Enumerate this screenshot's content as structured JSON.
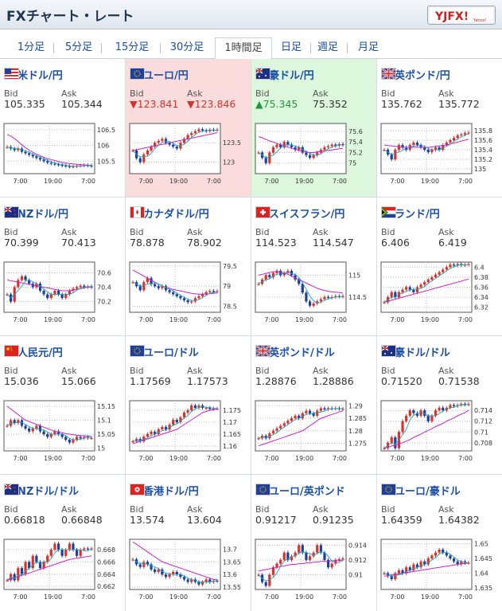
{
  "header": {
    "title": "FXチャート・レート",
    "logo_text": "YJFX!",
    "logo_sub": "Yahoo!"
  },
  "tabs": [
    {
      "label": "1分足",
      "active": false
    },
    {
      "label": "5分足",
      "active": false
    },
    {
      "label": "15分足",
      "active": false
    },
    {
      "label": "30分足",
      "active": false
    },
    {
      "label": "1時間足",
      "active": true
    },
    {
      "label": "日足",
      "active": false
    },
    {
      "label": "週足",
      "active": false
    },
    {
      "label": "月足",
      "active": false
    }
  ],
  "labels": {
    "bid": "Bid",
    "ask": "Ask"
  },
  "colors": {
    "link": "#1b4fa8",
    "down": "#d9322b",
    "up": "#23963a",
    "down_bg": "#fbdcdc",
    "up_bg": "#ddf7dd",
    "ma_line": "#cc22cc"
  },
  "pairs": [
    {
      "name": "米ドル/円",
      "flag": "us",
      "bid": "105.335",
      "ask": "105.344",
      "state": "normal",
      "yticks": [
        "106.5",
        "106",
        "105.5"
      ],
      "xticks": [
        "7:00",
        "19:00",
        "7:00"
      ],
      "series": [
        105.95,
        105.9,
        105.85,
        105.9,
        105.8,
        105.75,
        105.7,
        105.65,
        105.6,
        105.55,
        105.5,
        105.45,
        105.42,
        105.4,
        105.38,
        105.36,
        105.34,
        105.32,
        105.33,
        105.35,
        105.36,
        105.37,
        105.36,
        105.34
      ],
      "ma": [
        106.35,
        106.3,
        106.22,
        106.12,
        106.02,
        105.93,
        105.85,
        105.78,
        105.72,
        105.67,
        105.62,
        105.58,
        105.55,
        105.52,
        105.49,
        105.46,
        105.44,
        105.42,
        105.41,
        105.4,
        105.39,
        105.38,
        105.37,
        105.36
      ],
      "ylim": [
        105.1,
        106.7
      ]
    },
    {
      "name": "ユーロ/円",
      "flag": "eu",
      "bid": "▼123.841",
      "ask": "▼123.846",
      "state": "down",
      "yticks": [
        "123.5",
        "123"
      ],
      "xticks": [
        "7:00",
        "19:00",
        "7:00"
      ],
      "series": [
        123.3,
        123.1,
        123.0,
        123.2,
        123.3,
        123.4,
        123.5,
        123.55,
        123.6,
        123.5,
        123.45,
        123.4,
        123.35,
        123.5,
        123.6,
        123.7,
        123.75,
        123.8,
        123.85,
        123.82,
        123.8,
        123.84,
        123.83,
        123.84
      ],
      "ma": [
        123.3,
        123.32,
        123.34,
        123.36,
        123.38,
        123.4,
        123.42,
        123.44,
        123.46,
        123.48,
        123.5,
        123.52,
        123.54,
        123.56,
        123.58,
        123.6,
        123.62,
        123.64,
        123.66,
        123.68,
        123.7,
        123.72,
        123.74,
        123.76
      ],
      "ylim": [
        122.7,
        124.0
      ]
    },
    {
      "name": "豪ドル/円",
      "flag": "au",
      "bid": "▲75.345",
      "ask": "75.352",
      "state": "up",
      "yticks": [
        "75.6",
        "75.4",
        "75.2",
        "75"
      ],
      "xticks": [
        "7:00",
        "19:00",
        "7:00"
      ],
      "series": [
        75.2,
        75.1,
        75.0,
        75.2,
        75.3,
        75.35,
        75.3,
        75.4,
        75.35,
        75.3,
        75.25,
        75.3,
        75.2,
        75.15,
        75.1,
        75.15,
        75.2,
        75.25,
        75.3,
        75.32,
        75.35,
        75.33,
        75.36,
        75.345
      ],
      "ma": [
        75.5,
        75.48,
        75.45,
        75.42,
        75.4,
        75.37,
        75.35,
        75.33,
        75.3,
        75.28,
        75.26,
        75.24,
        75.22,
        75.21,
        75.2,
        75.2,
        75.21,
        75.22,
        75.23,
        75.24,
        75.25,
        75.26,
        75.27,
        75.28
      ],
      "ylim": [
        74.8,
        75.75
      ]
    },
    {
      "name": "英ポンド/円",
      "flag": "uk",
      "bid": "135.762",
      "ask": "135.772",
      "state": "normal",
      "yticks": [
        "135.8",
        "135.6",
        "135.4",
        "135.2",
        "135"
      ],
      "xticks": [
        "7:00",
        "19:00",
        "7:00"
      ],
      "series": [
        135.4,
        135.3,
        135.2,
        135.4,
        135.5,
        135.45,
        135.4,
        135.5,
        135.55,
        135.5,
        135.45,
        135.4,
        135.35,
        135.4,
        135.45,
        135.4,
        135.5,
        135.55,
        135.6,
        135.65,
        135.7,
        135.72,
        135.75,
        135.76
      ],
      "ma": [
        135.5,
        135.49,
        135.48,
        135.47,
        135.46,
        135.45,
        135.45,
        135.45,
        135.45,
        135.45,
        135.45,
        135.45,
        135.45,
        135.46,
        135.47,
        135.48,
        135.49,
        135.5,
        135.52,
        135.54,
        135.56,
        135.58,
        135.6,
        135.62
      ],
      "ylim": [
        134.9,
        135.95
      ]
    },
    {
      "name": "NZドル/円",
      "flag": "nz",
      "bid": "70.399",
      "ask": "70.413",
      "state": "normal",
      "yticks": [
        "70.6",
        "70.4",
        "70.2"
      ],
      "xticks": [
        "7:00",
        "19:00",
        "7:00"
      ],
      "series": [
        70.3,
        70.2,
        70.4,
        70.5,
        70.55,
        70.5,
        70.45,
        70.4,
        70.45,
        70.35,
        70.3,
        70.25,
        70.3,
        70.35,
        70.3,
        70.25,
        70.3,
        70.35,
        70.38,
        70.4,
        70.42,
        70.4,
        70.41,
        70.399
      ],
      "ma": [
        70.5,
        70.49,
        70.48,
        70.47,
        70.46,
        70.45,
        70.44,
        70.43,
        70.42,
        70.41,
        70.4,
        70.39,
        70.38,
        70.37,
        70.36,
        70.35,
        70.35,
        70.35,
        70.36,
        70.37,
        70.38,
        70.39,
        70.4,
        70.4
      ],
      "ylim": [
        70.05,
        70.75
      ]
    },
    {
      "name": "カナダドル/円",
      "flag": "ca",
      "bid": "78.878",
      "ask": "78.902",
      "state": "normal",
      "yticks": [
        "79.5",
        "79",
        "78.5"
      ],
      "xticks": [
        "7:00",
        "19:00",
        "7:00"
      ],
      "series": [
        79.1,
        79.0,
        78.9,
        79.1,
        79.2,
        79.05,
        79.0,
        78.95,
        79.0,
        78.9,
        78.85,
        78.8,
        78.75,
        78.7,
        78.65,
        78.6,
        78.62,
        78.7,
        78.75,
        78.8,
        78.85,
        78.88,
        78.86,
        78.878
      ],
      "ma": [
        79.4,
        79.35,
        79.3,
        79.25,
        79.2,
        79.15,
        79.1,
        79.05,
        79.0,
        78.97,
        78.95,
        78.92,
        78.9,
        78.88,
        78.86,
        78.84,
        78.82,
        78.81,
        78.8,
        78.8,
        78.8,
        78.81,
        78.82,
        78.83
      ],
      "ylim": [
        78.35,
        79.6
      ]
    },
    {
      "name": "スイスフラン/円",
      "flag": "ch",
      "bid": "114.523",
      "ask": "114.547",
      "state": "normal",
      "yticks": [
        "115",
        "114.5"
      ],
      "xticks": [
        "7:00",
        "19:00",
        "7:00"
      ],
      "series": [
        114.8,
        114.9,
        115.0,
        114.95,
        115.05,
        115.1,
        115.0,
        115.05,
        115.1,
        115.0,
        114.9,
        114.8,
        114.6,
        114.4,
        114.3,
        114.35,
        114.4,
        114.45,
        114.5,
        114.48,
        114.5,
        114.52,
        114.51,
        114.523
      ],
      "ma": [
        115.0,
        115.02,
        115.04,
        115.06,
        115.08,
        115.08,
        115.07,
        115.05,
        115.02,
        114.98,
        114.94,
        114.9,
        114.86,
        114.82,
        114.78,
        114.74,
        114.7,
        114.67,
        114.65,
        114.63,
        114.62,
        114.61,
        114.6,
        114.59
      ],
      "ylim": [
        114.15,
        115.3
      ]
    },
    {
      "name": "ランド/円",
      "flag": "za",
      "bid": "6.406",
      "ask": "6.419",
      "state": "normal",
      "yticks": [
        "6.4",
        "6.38",
        "6.36",
        "6.34",
        "6.32"
      ],
      "xticks": [
        "7:00",
        "19:00",
        "7:00"
      ],
      "series": [
        6.33,
        6.34,
        6.35,
        6.34,
        6.35,
        6.355,
        6.36,
        6.355,
        6.35,
        6.36,
        6.365,
        6.37,
        6.375,
        6.38,
        6.385,
        6.39,
        6.395,
        6.4,
        6.405,
        6.403,
        6.406,
        6.404,
        6.405,
        6.406
      ],
      "ma": [
        6.33,
        6.332,
        6.334,
        6.336,
        6.338,
        6.34,
        6.342,
        6.344,
        6.346,
        6.348,
        6.35,
        6.352,
        6.354,
        6.356,
        6.358,
        6.36,
        6.362,
        6.364,
        6.366,
        6.368,
        6.37,
        6.372,
        6.374,
        6.376
      ],
      "ylim": [
        6.31,
        6.41
      ]
    },
    {
      "name": "人民元/円",
      "flag": "cn",
      "bid": "15.036",
      "ask": "15.066",
      "state": "normal",
      "yticks": [
        "15.15",
        "15.1",
        "15.05",
        "15"
      ],
      "xticks": [
        "7:00",
        "19:00",
        "7:00"
      ],
      "series": [
        15.08,
        15.1,
        15.09,
        15.1,
        15.08,
        15.07,
        15.06,
        15.07,
        15.08,
        15.06,
        15.05,
        15.04,
        15.05,
        15.06,
        15.05,
        15.04,
        15.03,
        15.02,
        15.03,
        15.04,
        15.035,
        15.04,
        15.036,
        15.036
      ],
      "ma": [
        15.15,
        15.14,
        15.13,
        15.12,
        15.11,
        15.1,
        15.095,
        15.09,
        15.085,
        15.08,
        15.075,
        15.07,
        15.065,
        15.06,
        15.058,
        15.055,
        15.052,
        15.05,
        15.048,
        15.046,
        15.045,
        15.044,
        15.043,
        15.042
      ],
      "ylim": [
        14.99,
        15.17
      ]
    },
    {
      "name": "ユーロ/ドル",
      "flag": "eu",
      "bid": "1.17569",
      "ask": "1.17573",
      "state": "normal",
      "yticks": [
        "1.175",
        "1.17",
        "1.165",
        "1.16"
      ],
      "xticks": [
        "7:00",
        "19:00",
        "7:00"
      ],
      "series": [
        1.162,
        1.163,
        1.162,
        1.164,
        1.165,
        1.166,
        1.165,
        1.167,
        1.168,
        1.167,
        1.169,
        1.171,
        1.17,
        1.172,
        1.174,
        1.175,
        1.177,
        1.176,
        1.177,
        1.176,
        1.176,
        1.1755,
        1.1757,
        1.1757
      ],
      "ma": [
        1.161,
        1.1615,
        1.162,
        1.1625,
        1.163,
        1.1635,
        1.164,
        1.1645,
        1.165,
        1.1655,
        1.166,
        1.1665,
        1.167,
        1.168,
        1.169,
        1.17,
        1.171,
        1.172,
        1.173,
        1.174,
        1.1745,
        1.175,
        1.1753,
        1.1755
      ],
      "ylim": [
        1.158,
        1.179
      ]
    },
    {
      "name": "英ポンド/ドル",
      "flag": "uk",
      "bid": "1.28876",
      "ask": "1.28886",
      "state": "normal",
      "yticks": [
        "1.29",
        "1.285",
        "1.28",
        "1.275"
      ],
      "xticks": [
        "7:00",
        "19:00",
        "7:00"
      ],
      "series": [
        1.277,
        1.278,
        1.277,
        1.279,
        1.28,
        1.281,
        1.282,
        1.283,
        1.284,
        1.285,
        1.286,
        1.285,
        1.287,
        1.288,
        1.287,
        1.286,
        1.288,
        1.289,
        1.2885,
        1.289,
        1.2888,
        1.289,
        1.2887,
        1.2888
      ],
      "ma": [
        1.274,
        1.2745,
        1.275,
        1.2755,
        1.276,
        1.2765,
        1.277,
        1.2775,
        1.278,
        1.2785,
        1.279,
        1.2795,
        1.28,
        1.281,
        1.282,
        1.283,
        1.284,
        1.285,
        1.2855,
        1.286,
        1.2865,
        1.287,
        1.2875,
        1.288
      ],
      "ylim": [
        1.272,
        1.292
      ]
    },
    {
      "name": "豪ドル/ドル",
      "flag": "au",
      "bid": "0.71520",
      "ask": "0.71538",
      "state": "normal",
      "yticks": [
        "0.714",
        "0.712",
        "0.71",
        "0.708"
      ],
      "xticks": [
        "7:00",
        "19:00",
        "7:00"
      ],
      "series": [
        0.707,
        0.708,
        0.709,
        0.707,
        0.71,
        0.712,
        0.713,
        0.714,
        0.7135,
        0.713,
        0.714,
        0.713,
        0.712,
        0.713,
        0.714,
        0.7145,
        0.714,
        0.7145,
        0.715,
        0.7148,
        0.715,
        0.7152,
        0.7151,
        0.7152
      ],
      "ma": [
        0.707,
        0.7072,
        0.7074,
        0.7076,
        0.7078,
        0.708,
        0.7083,
        0.7086,
        0.709,
        0.7093,
        0.7096,
        0.71,
        0.7103,
        0.7106,
        0.711,
        0.7113,
        0.7116,
        0.712,
        0.7123,
        0.7126,
        0.713,
        0.7133,
        0.7136,
        0.714
      ],
      "ylim": [
        0.7065,
        0.7158
      ]
    },
    {
      "name": "NZドル/ドル",
      "flag": "nz",
      "bid": "0.66818",
      "ask": "0.66848",
      "state": "normal",
      "yticks": [
        "0.668",
        "0.666",
        "0.664",
        "0.662"
      ],
      "xticks": [
        "7:00",
        "19:00",
        "7:00"
      ],
      "series": [
        0.663,
        0.664,
        0.663,
        0.665,
        0.664,
        0.666,
        0.665,
        0.667,
        0.666,
        0.665,
        0.666,
        0.667,
        0.668,
        0.669,
        0.668,
        0.667,
        0.668,
        0.669,
        0.668,
        0.667,
        0.668,
        0.6682,
        0.6681,
        0.6682
      ],
      "ma": [
        0.663,
        0.6632,
        0.6634,
        0.6636,
        0.6638,
        0.664,
        0.6642,
        0.6644,
        0.6646,
        0.6648,
        0.665,
        0.6652,
        0.6654,
        0.6656,
        0.6658,
        0.666,
        0.6662,
        0.6664,
        0.6665,
        0.6666,
        0.6667,
        0.6668,
        0.6669,
        0.667
      ],
      "ylim": [
        0.6615,
        0.6697
      ]
    },
    {
      "name": "香港ドル/円",
      "flag": "hk",
      "bid": "13.574",
      "ask": "13.604",
      "state": "normal",
      "yticks": [
        "13.7",
        "13.65",
        "13.6",
        "13.55"
      ],
      "xticks": [
        "7:00",
        "19:00",
        "7:00"
      ],
      "series": [
        13.66,
        13.64,
        13.63,
        13.65,
        13.64,
        13.62,
        13.61,
        13.62,
        13.6,
        13.59,
        13.6,
        13.61,
        13.6,
        13.59,
        13.58,
        13.57,
        13.58,
        13.57,
        13.56,
        13.57,
        13.58,
        13.57,
        13.575,
        13.574
      ],
      "ma": [
        13.73,
        13.72,
        13.71,
        13.7,
        13.69,
        13.68,
        13.67,
        13.66,
        13.65,
        13.645,
        13.64,
        13.635,
        13.63,
        13.625,
        13.62,
        13.615,
        13.61,
        13.605,
        13.6,
        13.595,
        13.59,
        13.585,
        13.58,
        13.578
      ],
      "ylim": [
        13.54,
        13.74
      ]
    },
    {
      "name": "ユーロ/英ポンド",
      "flag": "eu",
      "bid": "0.91217",
      "ask": "0.91235",
      "state": "normal",
      "yticks": [
        "0.914",
        "0.912",
        "0.91"
      ],
      "xticks": [
        "7:00",
        "19:00",
        "7:00"
      ],
      "series": [
        0.91,
        0.909,
        0.9085,
        0.91,
        0.911,
        0.9115,
        0.912,
        0.913,
        0.912,
        0.9125,
        0.913,
        0.914,
        0.913,
        0.912,
        0.9125,
        0.913,
        0.914,
        0.913,
        0.912,
        0.911,
        0.9115,
        0.912,
        0.9121,
        0.9122
      ],
      "ma": [
        0.9105,
        0.9106,
        0.9107,
        0.9108,
        0.9109,
        0.911,
        0.9111,
        0.9112,
        0.9113,
        0.9114,
        0.9114,
        0.9115,
        0.9115,
        0.9116,
        0.9116,
        0.9117,
        0.9117,
        0.9118,
        0.9118,
        0.9118,
        0.9119,
        0.9119,
        0.9119,
        0.912
      ],
      "ylim": [
        0.908,
        0.9148
      ]
    },
    {
      "name": "ユーロ/豪ドル",
      "flag": "eu",
      "bid": "1.64359",
      "ask": "1.64382",
      "state": "normal",
      "yticks": [
        "1.65",
        "1.645",
        "1.64",
        "1.635"
      ],
      "xticks": [
        "7:00",
        "19:00",
        "7:00"
      ],
      "series": [
        1.64,
        1.639,
        1.638,
        1.64,
        1.641,
        1.64,
        1.642,
        1.641,
        1.643,
        1.642,
        1.644,
        1.643,
        1.645,
        1.646,
        1.647,
        1.648,
        1.647,
        1.646,
        1.645,
        1.644,
        1.643,
        1.644,
        1.6435,
        1.6436
      ],
      "ma": [
        1.639,
        1.6392,
        1.6394,
        1.6396,
        1.6398,
        1.64,
        1.6402,
        1.6404,
        1.6406,
        1.6408,
        1.641,
        1.6412,
        1.6414,
        1.6416,
        1.6418,
        1.642,
        1.6422,
        1.6424,
        1.6426,
        1.6428,
        1.643,
        1.6432,
        1.6433,
        1.6434
      ],
      "ylim": [
        1.6345,
        1.6515
      ]
    }
  ]
}
